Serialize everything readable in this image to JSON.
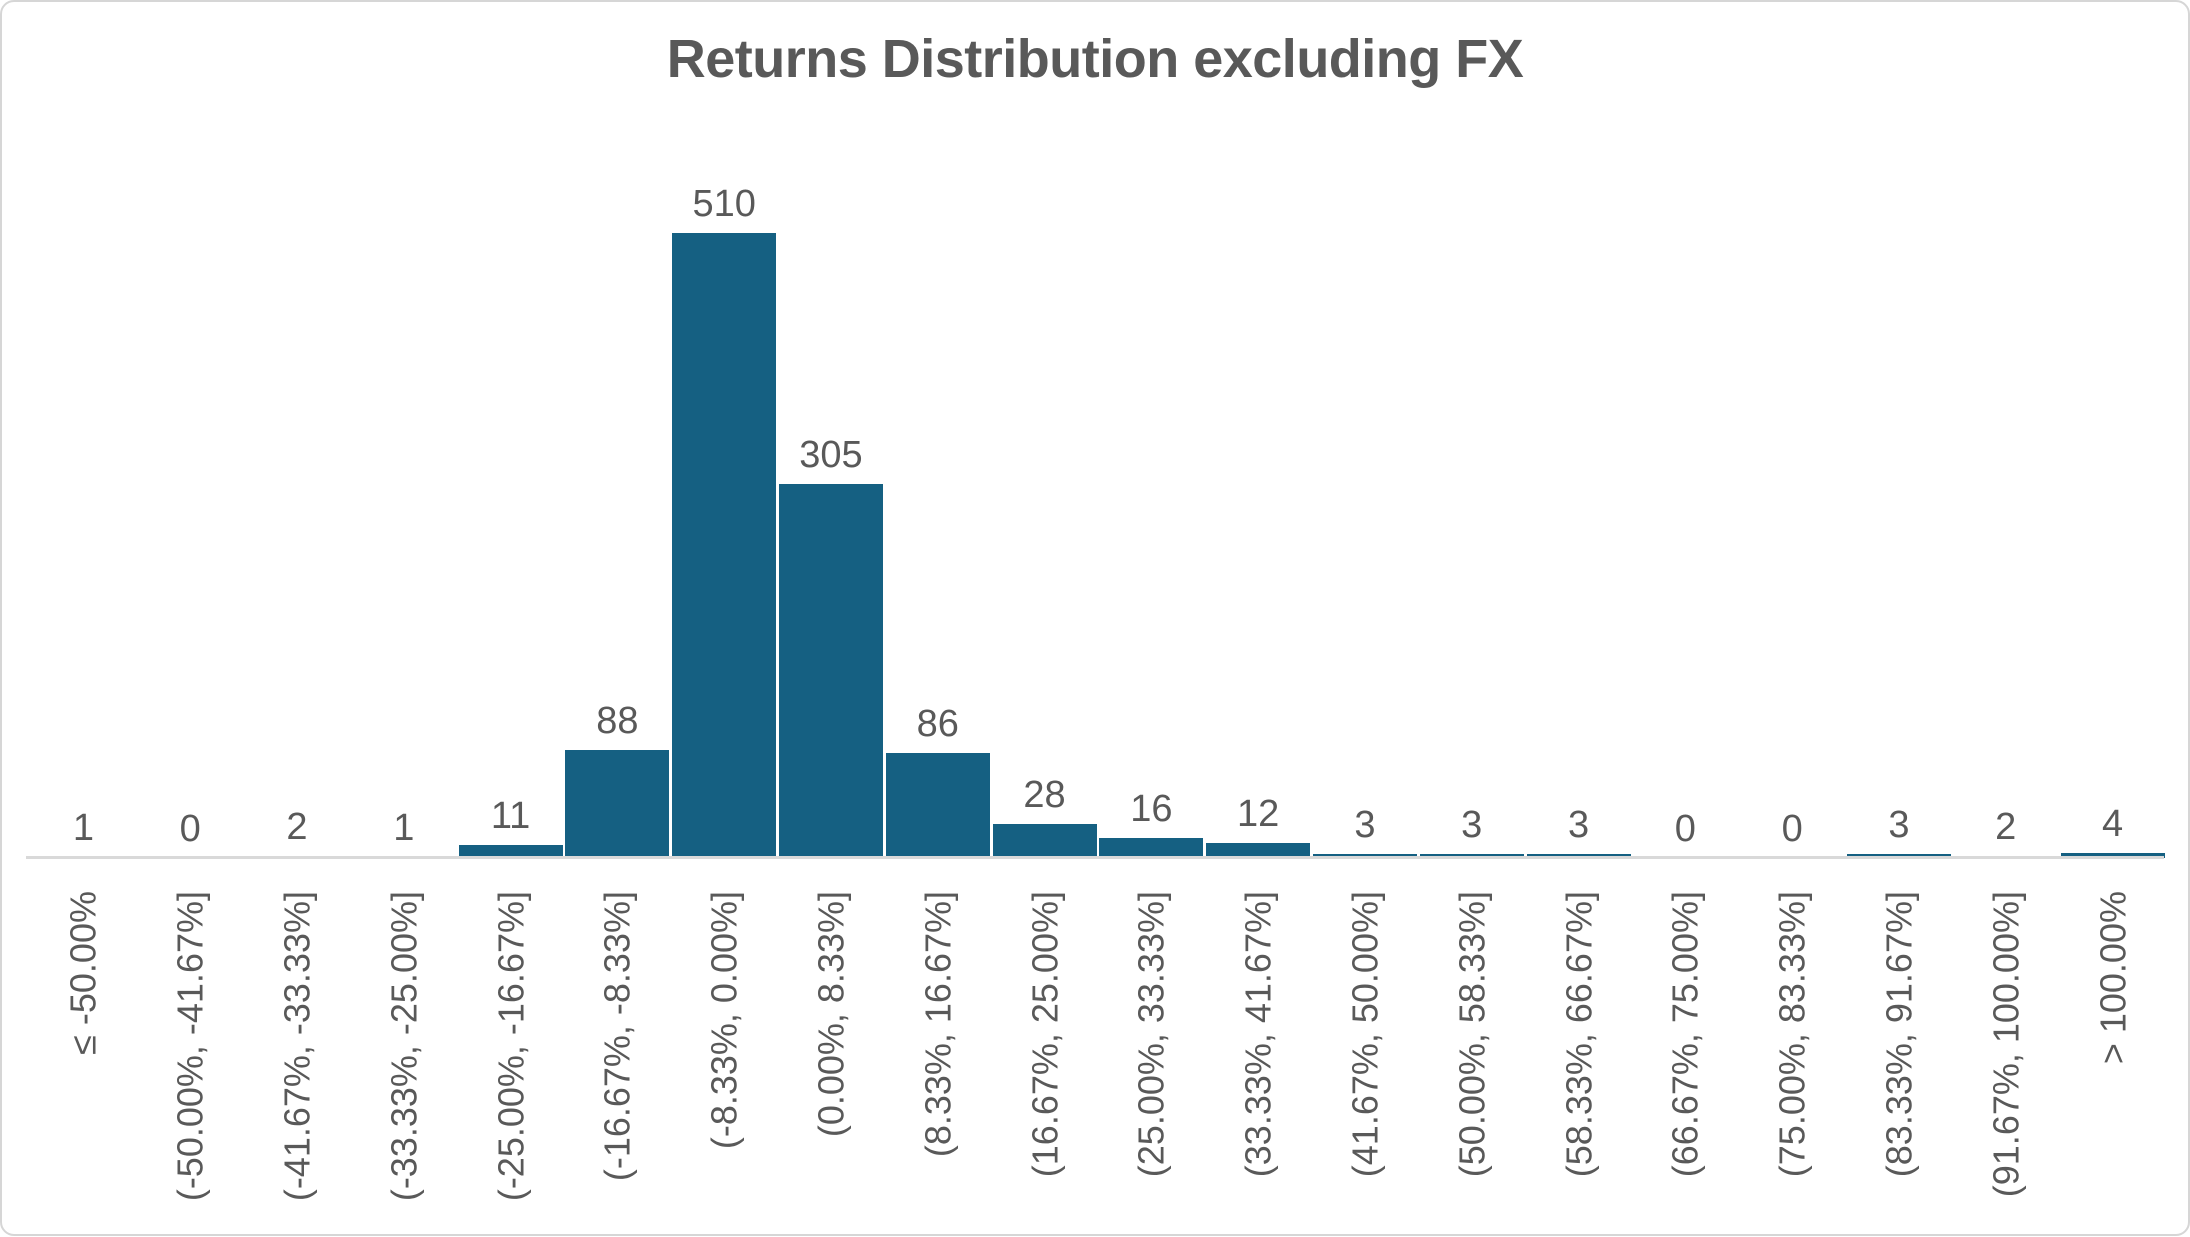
{
  "chart": {
    "title": "Returns Distribution excluding FX"
  },
  "chart_data": {
    "type": "bar",
    "title": "Returns Distribution excluding FX",
    "categories": [
      "≤ -50.00%",
      "(-50.00%, -41.67%]",
      "(-41.67%, -33.33%]",
      "(-33.33%, -25.00%]",
      "(-25.00%, -16.67%]",
      "(-16.67%, -8.33%]",
      "(-8.33%, 0.00%]",
      "(0.00%, 8.33%]",
      "(8.33%, 16.67%]",
      "(16.67%, 25.00%]",
      "(25.00%, 33.33%]",
      "(33.33%, 41.67%]",
      "(41.67%, 50.00%]",
      "(50.00%, 58.33%]",
      "(58.33%, 66.67%]",
      "(66.67%, 75.00%]",
      "(75.00%, 83.33%]",
      "(83.33%, 91.67%]",
      "(91.67%, 100.00%]",
      "> 100.00%"
    ],
    "values": [
      1,
      0,
      2,
      1,
      11,
      88,
      510,
      305,
      86,
      28,
      16,
      12,
      3,
      3,
      3,
      0,
      0,
      3,
      2,
      4
    ],
    "xlabel": "",
    "ylabel": "",
    "ylim": [
      0,
      510
    ],
    "grid": false,
    "legend": false,
    "bar_value_labels": true,
    "x_tick_rotation": -90,
    "colors": {
      "bar": "#156082",
      "title": "#595959",
      "labels": "#595959",
      "axis_line": "#d9d9d9"
    }
  }
}
